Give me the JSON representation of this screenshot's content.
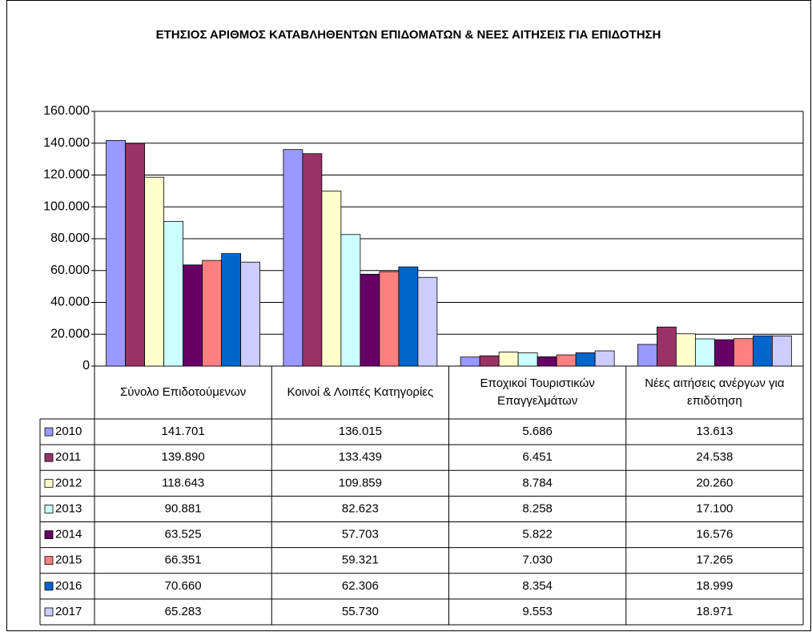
{
  "chart_data": {
    "type": "bar",
    "title": "ΕΤΗΣΙΟΣ ΑΡΙΘΜΟΣ ΚΑΤΑΒΛΗΘΕΝΤΩΝ ΕΠΙΔΟΜΑΤΩΝ & ΝΕΕΣ ΑΙΤΗΣΕΙΣ ΓΙΑ ΕΠΙΔΟΤΗΣΗ",
    "categories": [
      "Σύνολο Επιδοτούμενων",
      "Κοινοί  & Λοιπές Κατηγορίες",
      "Εποχικοί Τουριστικών Επαγγελμάτων",
      "Νέες αιτήσεις ανέργων για επιδότηση"
    ],
    "series": [
      {
        "name": "2010",
        "color": "#9999ff",
        "values": [
          141701,
          136015,
          5686,
          13613
        ],
        "value_labels": [
          "141.701",
          "136.015",
          "5.686",
          "13.613"
        ]
      },
      {
        "name": "2011",
        "color": "#993366",
        "values": [
          139890,
          133439,
          6451,
          24538
        ],
        "value_labels": [
          "139.890",
          "133.439",
          "6.451",
          "24.538"
        ]
      },
      {
        "name": "2012",
        "color": "#ffffcc",
        "values": [
          118643,
          109859,
          8784,
          20260
        ],
        "value_labels": [
          "118.643",
          "109.859",
          "8.784",
          "20.260"
        ]
      },
      {
        "name": "2013",
        "color": "#ccffff",
        "values": [
          90881,
          82623,
          8258,
          17100
        ],
        "value_labels": [
          "90.881",
          "82.623",
          "8.258",
          "17.100"
        ]
      },
      {
        "name": "2014",
        "color": "#660066",
        "values": [
          63525,
          57703,
          5822,
          16576
        ],
        "value_labels": [
          "63.525",
          "57.703",
          "5.822",
          "16.576"
        ]
      },
      {
        "name": "2015",
        "color": "#ff8080",
        "values": [
          66351,
          59321,
          7030,
          17265
        ],
        "value_labels": [
          "66.351",
          "59.321",
          "7.030",
          "17.265"
        ]
      },
      {
        "name": "2016",
        "color": "#0066cc",
        "values": [
          70660,
          62306,
          8354,
          18999
        ],
        "value_labels": [
          "70.660",
          "62.306",
          "8.354",
          "18.999"
        ]
      },
      {
        "name": "2017",
        "color": "#ccccff",
        "values": [
          65283,
          55730,
          9553,
          18971
        ],
        "value_labels": [
          "65.283",
          "55.730",
          "9.553",
          "18.971"
        ]
      }
    ],
    "ylim": [
      0,
      160000
    ],
    "yticks": [
      0,
      {
        "value": 20000,
        "label": "20.000"
      },
      {
        "value": 40000,
        "label": "40.000"
      },
      {
        "value": 60000,
        "label": "60.000"
      },
      {
        "value": 80000,
        "label": "80.000"
      },
      {
        "value": 100000,
        "label": "100.000"
      },
      {
        "value": 120000,
        "label": "120.000"
      },
      {
        "value": 140000,
        "label": "140.000"
      },
      {
        "value": 160000,
        "label": "160.000"
      }
    ],
    "grid": true
  }
}
